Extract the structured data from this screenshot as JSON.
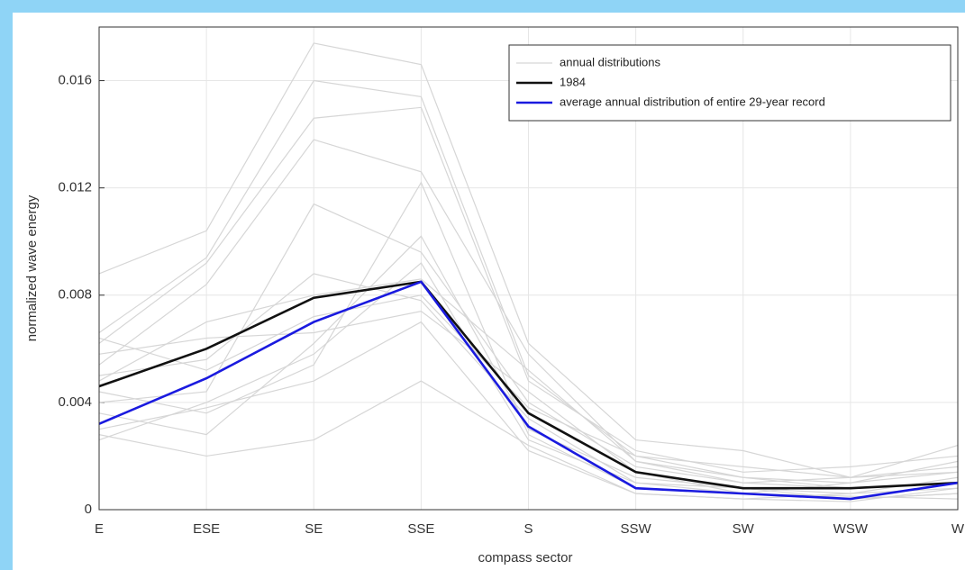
{
  "chart_data": {
    "type": "line",
    "xlabel": "compass sector",
    "ylabel": "normalized wave energy",
    "categories": [
      "E",
      "ESE",
      "SE",
      "SSE",
      "S",
      "SSW",
      "SW",
      "WSW",
      "W"
    ],
    "ylim": [
      0,
      0.018
    ],
    "yticks": [
      0,
      0.004,
      0.008,
      0.012,
      0.016
    ],
    "grid": true,
    "legend": "upper right",
    "series": [
      {
        "name": "annual distributions",
        "color": "#d6d6d6",
        "values": [
          0.0088,
          0.0104,
          0.0174,
          0.0166,
          0.0062,
          0.0026,
          0.0022,
          0.0012,
          0.0024
        ]
      },
      {
        "color": "#d6d6d6",
        "values": [
          0.0066,
          0.0094,
          0.016,
          0.0154,
          0.005,
          0.002,
          0.0012,
          0.001,
          0.0018
        ]
      },
      {
        "color": "#d6d6d6",
        "values": [
          0.0062,
          0.0092,
          0.0146,
          0.015,
          0.0048,
          0.0022,
          0.0014,
          0.0016,
          0.002
        ]
      },
      {
        "color": "#d6d6d6",
        "values": [
          0.0028,
          0.002,
          0.0026,
          0.0048,
          0.0024,
          0.0006,
          0.0004,
          0.0006,
          0.0008
        ]
      },
      {
        "color": "#d6d6d6",
        "values": [
          0.0054,
          0.0084,
          0.0138,
          0.0126,
          0.0058,
          0.0018,
          0.001,
          0.0012,
          0.0014
        ]
      },
      {
        "color": "#d6d6d6",
        "values": [
          0.004,
          0.0044,
          0.0114,
          0.0096,
          0.004,
          0.0016,
          0.001,
          0.0008,
          0.001
        ]
      },
      {
        "color": "#d6d6d6",
        "values": [
          0.0036,
          0.0028,
          0.0062,
          0.0102,
          0.003,
          0.0012,
          0.0008,
          0.0006,
          0.0012
        ]
      },
      {
        "color": "#d6d6d6",
        "values": [
          0.005,
          0.0056,
          0.0088,
          0.0078,
          0.0034,
          0.001,
          0.0008,
          0.0004,
          0.0006
        ]
      },
      {
        "color": "#d6d6d6",
        "values": [
          0.003,
          0.0038,
          0.0048,
          0.007,
          0.0022,
          0.0006,
          0.0004,
          0.0003,
          0.0008
        ]
      },
      {
        "color": "#d6d6d6",
        "values": [
          0.0058,
          0.0064,
          0.0066,
          0.0074,
          0.0044,
          0.0014,
          0.0006,
          0.001,
          0.0014
        ]
      },
      {
        "color": "#d6d6d6",
        "values": [
          0.0044,
          0.0036,
          0.0054,
          0.0122,
          0.0028,
          0.0008,
          0.0006,
          0.0005,
          0.0004
        ]
      },
      {
        "color": "#d6d6d6",
        "values": [
          0.0064,
          0.0052,
          0.0072,
          0.008,
          0.0038,
          0.002,
          0.0016,
          0.0012,
          0.0016
        ]
      },
      {
        "color": "#d6d6d6",
        "values": [
          0.0026,
          0.004,
          0.0058,
          0.0092,
          0.0026,
          0.001,
          0.0006,
          0.0004,
          0.0006
        ]
      },
      {
        "color": "#d6d6d6",
        "values": [
          0.0048,
          0.007,
          0.008,
          0.0086,
          0.0052,
          0.0018,
          0.0012,
          0.0008,
          0.001
        ]
      },
      {
        "name": "1984",
        "color": "#111111",
        "values": [
          0.0046,
          0.006,
          0.0079,
          0.0085,
          0.0036,
          0.0014,
          0.0008,
          0.0008,
          0.001
        ]
      },
      {
        "name": "average annual distribution of entire 29-year record",
        "color": "#1a1adf",
        "values": [
          0.0032,
          0.0049,
          0.007,
          0.0085,
          0.0031,
          0.0008,
          0.0006,
          0.0004,
          0.001
        ]
      }
    ]
  }
}
